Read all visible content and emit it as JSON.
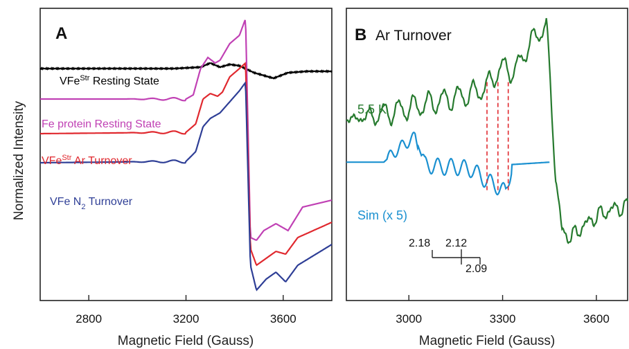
{
  "figure": {
    "ylabel": "Normalized Intensity"
  },
  "chart_data": [
    {
      "type": "line",
      "panel_letter": "A",
      "xlabel": "Magnetic Field (Gauss)",
      "xlim": [
        2600,
        3800
      ],
      "xticks": [
        2800,
        3200,
        3600
      ],
      "tick_labels": [
        "2800",
        "3200",
        "3600"
      ],
      "ylim": [
        -1,
        1
      ],
      "grid": false,
      "series": [
        {
          "name": "VFe",
          "sup": "Str",
          "suffix": " Resting State",
          "color": "#000000",
          "x": [
            2600,
            3150,
            3260,
            3300,
            3340,
            3380,
            3420,
            3480,
            3520,
            3560,
            3620,
            3700,
            3800
          ],
          "y": [
            0.62,
            0.62,
            0.63,
            0.66,
            0.63,
            0.65,
            0.64,
            0.59,
            0.57,
            0.55,
            0.59,
            0.6,
            0.6
          ]
        },
        {
          "name": "Fe protein Resting State",
          "color": "#c040b4",
          "x": [
            2600,
            3200,
            3230,
            3260,
            3290,
            3320,
            3340,
            3380,
            3420,
            3445,
            3465,
            3490,
            3520,
            3570,
            3620,
            3680,
            3800
          ],
          "y": [
            0.4,
            0.4,
            0.43,
            0.62,
            0.7,
            0.66,
            0.68,
            0.8,
            0.86,
            0.98,
            -0.6,
            -0.62,
            -0.55,
            -0.5,
            -0.55,
            -0.38,
            -0.33
          ]
        },
        {
          "name": "VFe",
          "sup": "Str",
          "suffix": " Ar Turnover",
          "color": "#e0282e",
          "x": [
            2600,
            3200,
            3240,
            3270,
            3300,
            3330,
            3350,
            3380,
            3420,
            3445,
            3465,
            3490,
            3530,
            3570,
            3610,
            3660,
            3800
          ],
          "y": [
            0.15,
            0.16,
            0.22,
            0.4,
            0.44,
            0.42,
            0.45,
            0.56,
            0.62,
            0.66,
            -0.68,
            -0.8,
            -0.75,
            -0.7,
            -0.72,
            -0.6,
            -0.49
          ]
        },
        {
          "name": "VFe",
          "sub": "2",
          "prefix_before_sub": " N",
          "suffix": " Turnover",
          "color": "#2e3e96",
          "x": [
            2600,
            3200,
            3240,
            3270,
            3300,
            3340,
            3380,
            3420,
            3445,
            3465,
            3490,
            3530,
            3570,
            3610,
            3660,
            3800
          ],
          "y": [
            -0.06,
            -0.05,
            0.02,
            0.2,
            0.26,
            0.3,
            0.38,
            0.46,
            0.52,
            -0.8,
            -0.98,
            -0.9,
            -0.85,
            -0.92,
            -0.8,
            -0.65
          ]
        }
      ]
    },
    {
      "type": "line",
      "panel_letter": "B",
      "title": "Ar Turnover",
      "xlabel": "Magnetic Field (Gauss)",
      "xlim": [
        2800,
        3700
      ],
      "xticks": [
        3000,
        3300,
        3600
      ],
      "tick_labels": [
        "3000",
        "3300",
        "3600"
      ],
      "grid": false,
      "series": [
        {
          "name": "5.5 K",
          "color": "#267a2e",
          "x": [
            2800,
            2900,
            3000,
            3100,
            3200,
            3250,
            3280,
            3310,
            3340,
            3360,
            3380,
            3400,
            3420,
            3440,
            3455,
            3470,
            3490,
            3520,
            3550,
            3600,
            3650,
            3700
          ],
          "y": [
            0.1,
            0.14,
            0.2,
            0.26,
            0.32,
            0.38,
            0.5,
            0.55,
            0.5,
            0.62,
            0.72,
            0.78,
            0.86,
            0.9,
            0.3,
            -0.4,
            -0.85,
            -0.9,
            -0.82,
            -0.72,
            -0.66,
            -0.64
          ]
        },
        {
          "name": "Sim (x 5)",
          "color": "#1a90d0",
          "x": [
            2800,
            2920,
            2960,
            3000,
            3020,
            3050,
            3100,
            3150,
            3200,
            3250,
            3280,
            3310,
            3330,
            3450
          ],
          "y": [
            -0.26,
            -0.26,
            -0.16,
            -0.08,
            -0.05,
            -0.28,
            -0.3,
            -0.3,
            -0.32,
            -0.42,
            -0.46,
            -0.52,
            -0.28,
            -0.26
          ]
        }
      ],
      "annotations": [
        "2.18",
        "2.12",
        "2.09"
      ]
    }
  ]
}
